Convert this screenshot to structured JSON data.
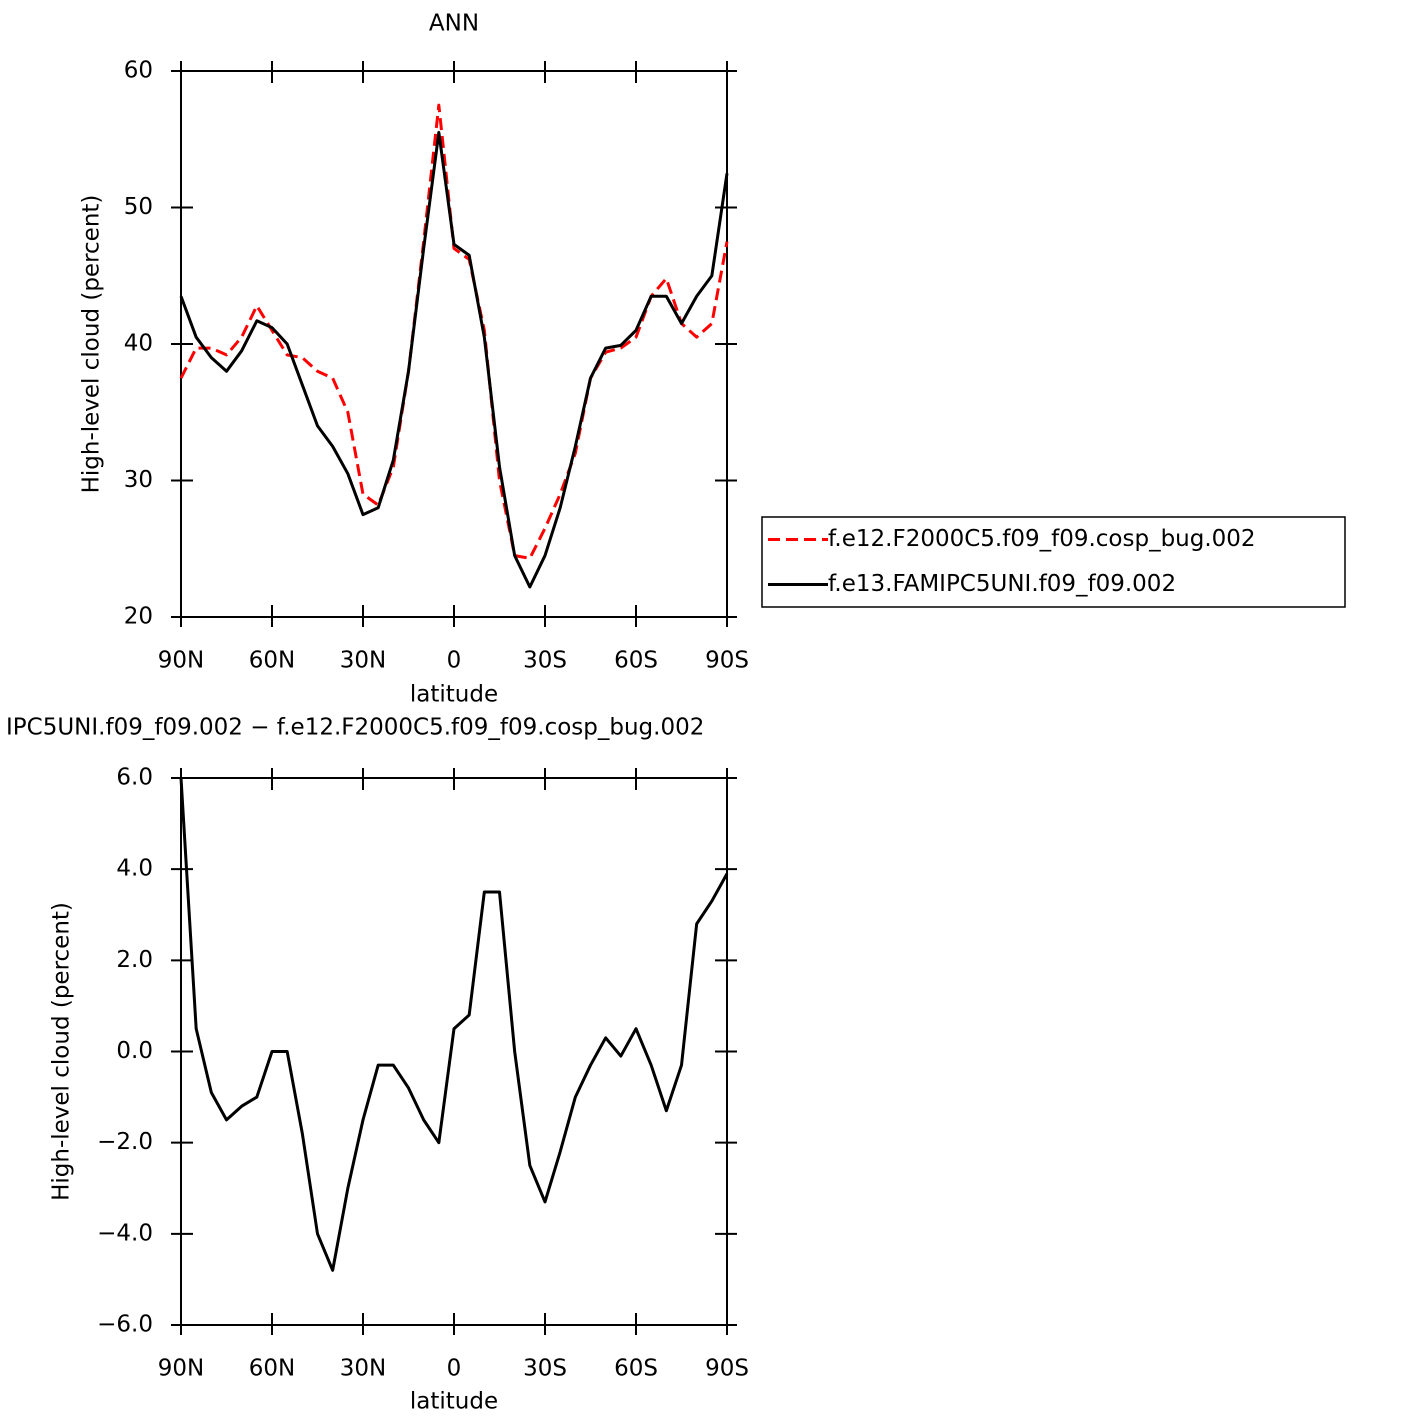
{
  "chart_data": [
    {
      "type": "line",
      "title": "ANN",
      "x_label": "latitude",
      "y_label": "High-level cloud (percent)",
      "x": [
        90,
        85,
        80,
        75,
        70,
        65,
        60,
        55,
        50,
        45,
        40,
        35,
        30,
        25,
        20,
        15,
        10,
        5,
        0,
        -5,
        -10,
        -15,
        -20,
        -25,
        -30,
        -35,
        -40,
        -45,
        -50,
        -55,
        -60,
        -65,
        -70,
        -75,
        -80,
        -85,
        -90
      ],
      "xlim": [
        90,
        -90
      ],
      "xticks": [
        {
          "value": 90,
          "label": "90N"
        },
        {
          "value": 60,
          "label": "60N"
        },
        {
          "value": 30,
          "label": "30N"
        },
        0,
        {
          "value": -30,
          "label": "30S"
        },
        {
          "value": -60,
          "label": "60S"
        },
        {
          "value": -90,
          "label": "90S"
        }
      ],
      "ylim": [
        20,
        60
      ],
      "yticks": [
        20,
        30,
        40,
        50,
        60
      ],
      "series": [
        {
          "name": "f.e12.F2000C5.f09_f09.cosp_bug.002",
          "color": "#ff0000",
          "dash": true,
          "values": [
            37.5,
            39.7,
            39.7,
            39.2,
            40.5,
            42.8,
            41,
            39.2,
            39,
            38,
            37.5,
            35,
            29,
            28.2,
            31,
            38,
            47.5,
            57.5,
            47,
            46.2,
            41,
            30,
            24.5,
            24.3,
            26.5,
            29,
            32,
            37.5,
            39.4,
            39.7,
            40.5,
            43.5,
            44.8,
            41.5,
            40.5,
            41.5,
            47.5
          ]
        },
        {
          "name": "f.e13.FAMIPC5UNI.f09_f09.002",
          "color": "#000000",
          "dash": false,
          "values": [
            43.5,
            40.5,
            39,
            38,
            39.5,
            41.7,
            41.2,
            40,
            37,
            34,
            32.5,
            30.5,
            27.5,
            28,
            31.5,
            38,
            47,
            55.5,
            47.3,
            46.5,
            40.5,
            31,
            24.5,
            22.2,
            24.5,
            28,
            32.5,
            37.5,
            39.7,
            39.9,
            41,
            43.5,
            43.5,
            41.5,
            43.5,
            45,
            52.5
          ]
        }
      ]
    },
    {
      "type": "line",
      "title": "IPC5UNI.f09_f09.002 − f.e12.F2000C5.f09_f09.cosp_bug.002",
      "x_label": "latitude",
      "y_label": "High-level cloud (percent)",
      "x": [
        90,
        85,
        80,
        75,
        70,
        65,
        60,
        55,
        50,
        45,
        40,
        35,
        30,
        25,
        20,
        15,
        10,
        5,
        0,
        -5,
        -10,
        -15,
        -20,
        -25,
        -30,
        -35,
        -40,
        -45,
        -50,
        -55,
        -60,
        -65,
        -70,
        -75,
        -80,
        -85,
        -90
      ],
      "xlim": [
        90,
        -90
      ],
      "xticks": [
        {
          "value": 90,
          "label": "90N"
        },
        {
          "value": 60,
          "label": "60N"
        },
        {
          "value": 30,
          "label": "30N"
        },
        0,
        {
          "value": -30,
          "label": "30S"
        },
        {
          "value": -60,
          "label": "60S"
        },
        {
          "value": -90,
          "label": "90S"
        }
      ],
      "ylim": [
        -6,
        6
      ],
      "yticks": [
        {
          "value": -6,
          "label": "−6.0"
        },
        {
          "value": -4,
          "label": "−4.0"
        },
        {
          "value": -2,
          "label": "−2.0"
        },
        {
          "value": 0,
          "label": "0.0"
        },
        {
          "value": 2,
          "label": "2.0"
        },
        {
          "value": 4,
          "label": "4.0"
        },
        {
          "value": 6,
          "label": "6.0"
        }
      ],
      "series": [
        {
          "color": "#000000",
          "dash": false,
          "values": [
            6,
            0.5,
            -0.9,
            -1.5,
            -1.2,
            -1.0,
            0.0,
            0.0,
            -1.8,
            -4.0,
            -4.8,
            -3.0,
            -1.5,
            -0.3,
            -0.3,
            -0.8,
            -1.5,
            -2.0,
            0.5,
            0.8,
            3.5,
            3.5,
            0.0,
            -2.5,
            -3.3,
            -2.2,
            -1.0,
            -0.3,
            0.3,
            -0.1,
            0.5,
            -0.3,
            -1.3,
            -0.3,
            2.8,
            3.3,
            3.9
          ]
        }
      ]
    }
  ]
}
